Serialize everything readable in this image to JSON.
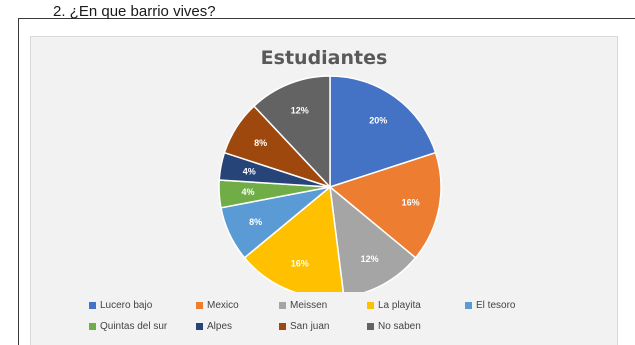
{
  "question": "2.  ¿En que barrio vives?",
  "chart_data": {
    "type": "pie",
    "title": "Estudiantes",
    "categories": [
      "Lucero bajo",
      "Mexico",
      "Meissen",
      "La playita",
      "El tesoro",
      "Quintas del sur",
      "Alpes",
      "San juan",
      "No saben"
    ],
    "values": [
      20,
      16,
      12,
      16,
      8,
      4,
      4,
      8,
      12
    ],
    "labels": [
      "20%",
      "16%",
      "12%",
      "16%",
      "8%",
      "4%",
      "4%",
      "8%",
      "12%"
    ],
    "colors": [
      "#4472c4",
      "#ed7d31",
      "#a5a5a5",
      "#ffc000",
      "#5b9bd5",
      "#70ad47",
      "#264478",
      "#9e480e",
      "#636363"
    ],
    "legend_position": "bottom"
  }
}
